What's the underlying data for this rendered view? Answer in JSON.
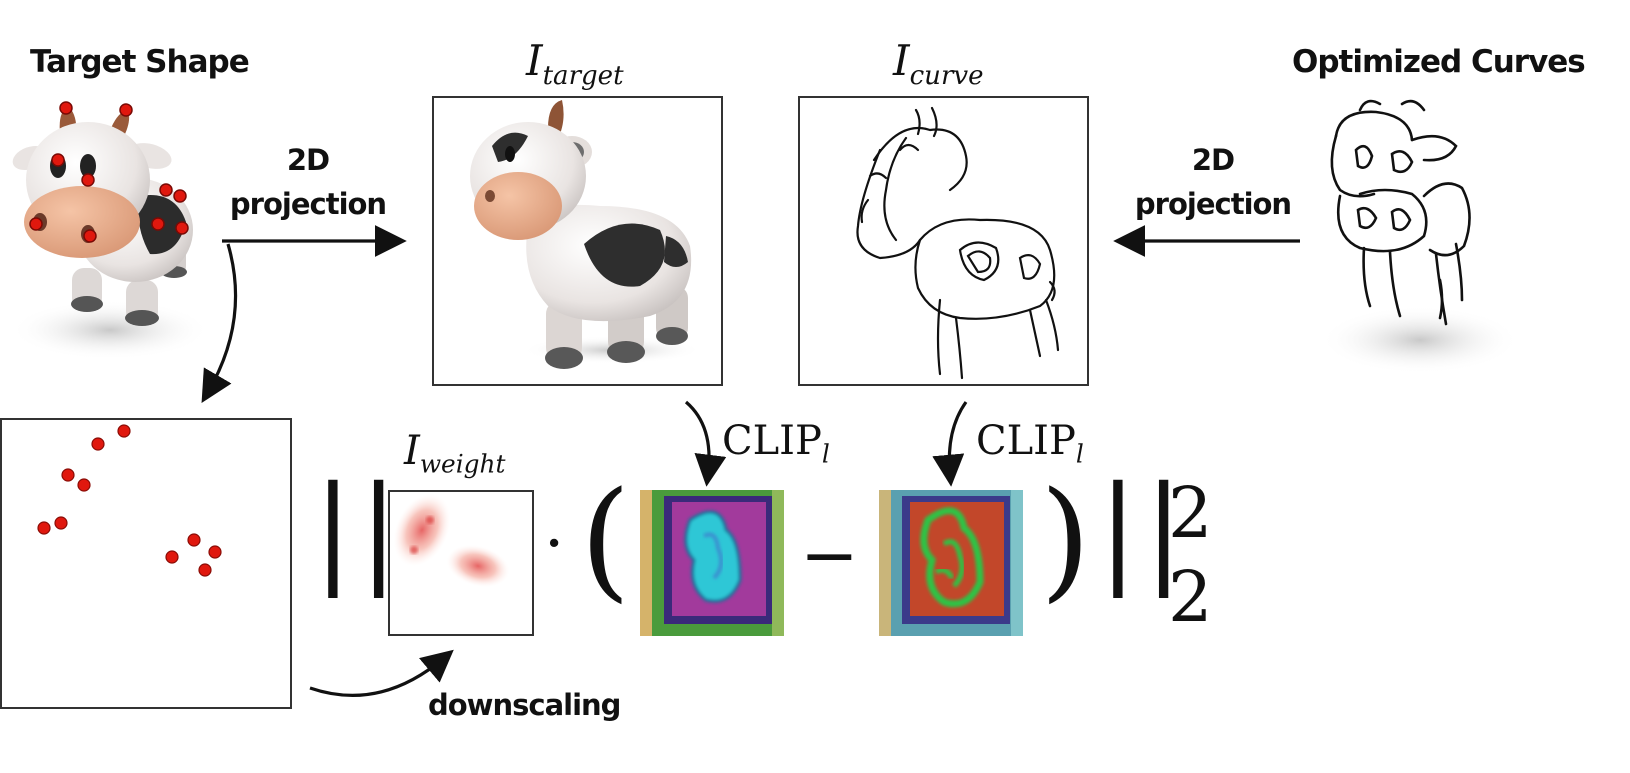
{
  "labels": {
    "target_shape": "Target Shape",
    "optimized_curves": "Optimized Curves",
    "projection_left_line1": "2D",
    "projection_left_line2": "projection",
    "projection_right_line1": "2D",
    "projection_right_line2": "projection",
    "downscaling": "downscaling"
  },
  "math": {
    "i_target_base": "I",
    "i_target_sub": "target",
    "i_curve_base": "I",
    "i_curve_sub": "curve",
    "i_weight_base": "I",
    "i_weight_sub": "weight",
    "clip_left_base": "CLIP",
    "clip_left_sub": "l",
    "clip_right_base": "CLIP",
    "clip_right_sub": "l",
    "norm_open": "||",
    "dot": "·",
    "paren_open": "(",
    "minus": "−",
    "paren_close": ")",
    "norm_close": "||",
    "exp_sup": "2",
    "exp_sub": "2"
  },
  "colors": {
    "keypoint": "#e0180e",
    "clip_map_a_bg": "#a23a9c",
    "clip_map_b_bg": "#c2472a",
    "clip_map_frame": "#3a9a3c",
    "clip_map_shape_a": "#2ec7d6",
    "clip_map_shape_b": "#2fc244"
  },
  "icons": [
    "cow-3d-render-icon",
    "cow-curve-sketch-icon",
    "clip-feature-map-icon",
    "arrow-icon"
  ]
}
